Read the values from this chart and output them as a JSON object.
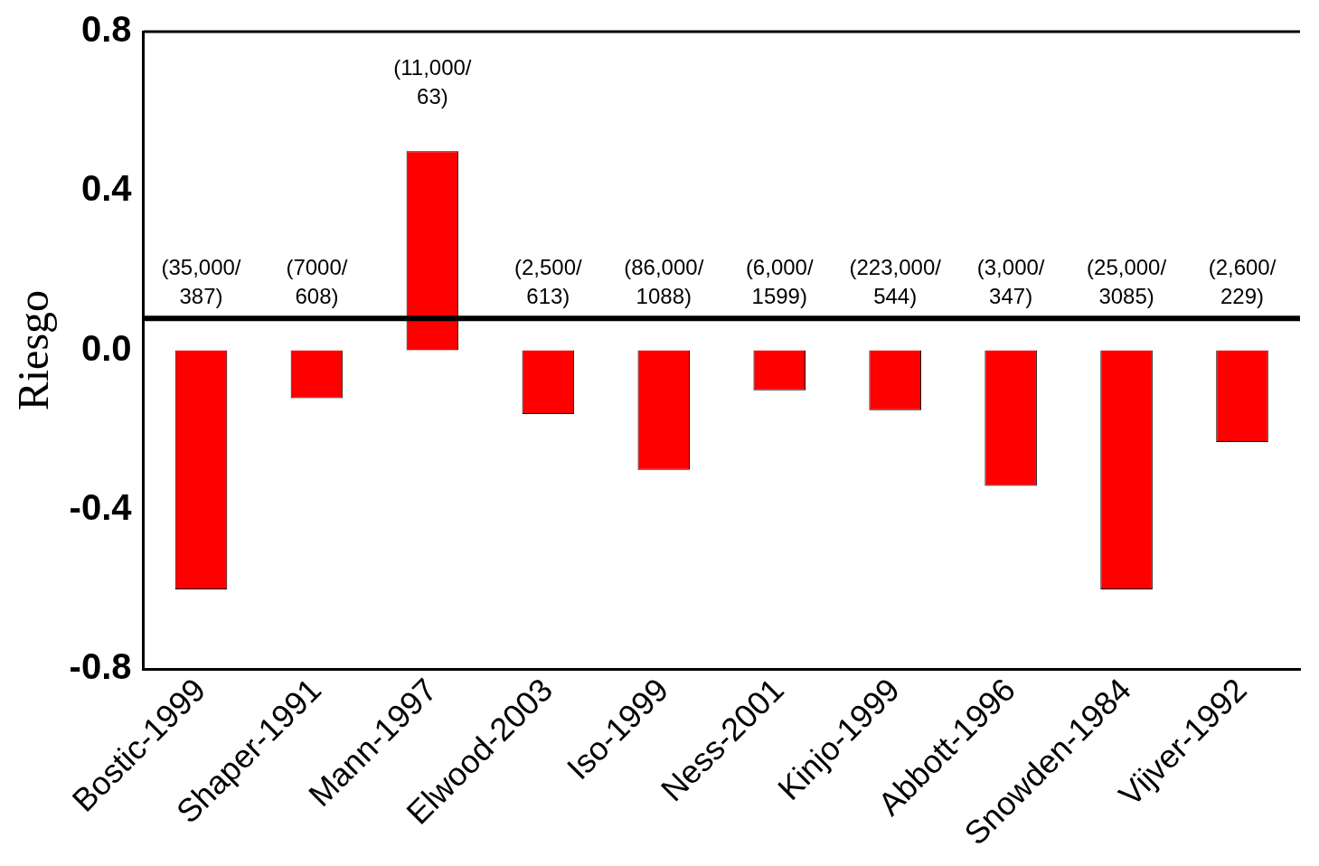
{
  "chart_data": {
    "type": "bar",
    "ylabel": "Riesgo",
    "categories": [
      "Bostic-1999",
      "Shaper-1991",
      "Mann-1997",
      "Elwood-2003",
      "Iso-1999",
      "Ness-2001",
      "Kinjo-1999",
      "Abbott-1996",
      "Snowden-1984",
      "Vijver-1992"
    ],
    "values": [
      -0.6,
      -0.12,
      0.5,
      -0.16,
      -0.3,
      -0.1,
      -0.15,
      -0.34,
      -0.6,
      -0.23
    ],
    "color": "#ff0000",
    "value_labels": [
      "(35,000/ 387)",
      "(7000/ 608)",
      "(11,000/ 63)",
      "(2,500/ 613)",
      "(86,000/ 1088)",
      "(6,000/ 1599)",
      "(223,000/ 544)",
      "(3,000/ 347)",
      "(25,000/ 3085)",
      "(2,600/ 229)"
    ],
    "ylim": [
      -0.8,
      0.8
    ],
    "yticks": [
      {
        "value": -0.8,
        "label": "-0.8"
      },
      {
        "value": -0.4,
        "label": "-0.4"
      },
      {
        "value": 0,
        "label": "0.0"
      },
      {
        "value": 0.4,
        "label": "0.4"
      },
      {
        "value": 0.8,
        "label": "0.8"
      }
    ],
    "ref_lines": [
      {
        "axis": "y",
        "value": 0.08,
        "color": "#000000"
      }
    ],
    "grid": false,
    "legend": false
  }
}
